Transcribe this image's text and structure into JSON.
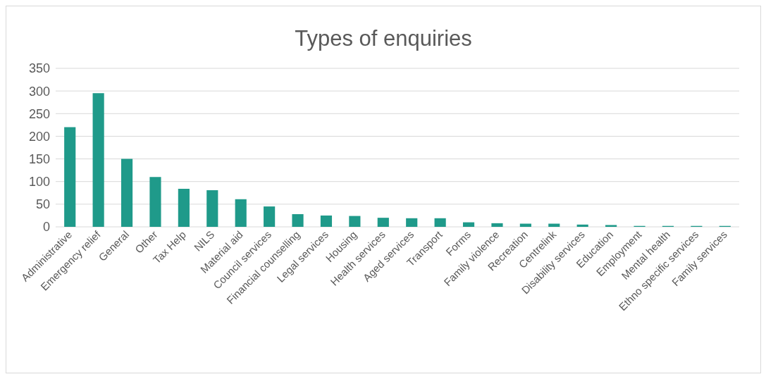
{
  "chart_data": {
    "type": "bar",
    "title": "Types of enquiries",
    "categories": [
      "Administrative",
      "Emergency relief",
      "General",
      "Other",
      "Tax Help",
      "NILS",
      "Material aid",
      "Council services",
      "Financial counselling",
      "Legal services",
      "Housing",
      "Health services",
      "Aged services",
      "Transport",
      "Forms",
      "Family violence",
      "Recreation",
      "Centrelink",
      "Disability services",
      "Education",
      "Employment",
      "Mental health",
      "Ethno specific services",
      "Family services"
    ],
    "values": [
      220,
      295,
      150,
      110,
      84,
      81,
      61,
      45,
      28,
      25,
      24,
      20,
      19,
      19,
      10,
      8,
      7,
      7,
      5,
      4,
      2,
      2,
      2,
      2
    ],
    "color": "#1f9a8a",
    "ylim": [
      0,
      350
    ],
    "yticks": [
      0,
      50,
      100,
      150,
      200,
      250,
      300,
      350
    ],
    "grid": "y"
  }
}
